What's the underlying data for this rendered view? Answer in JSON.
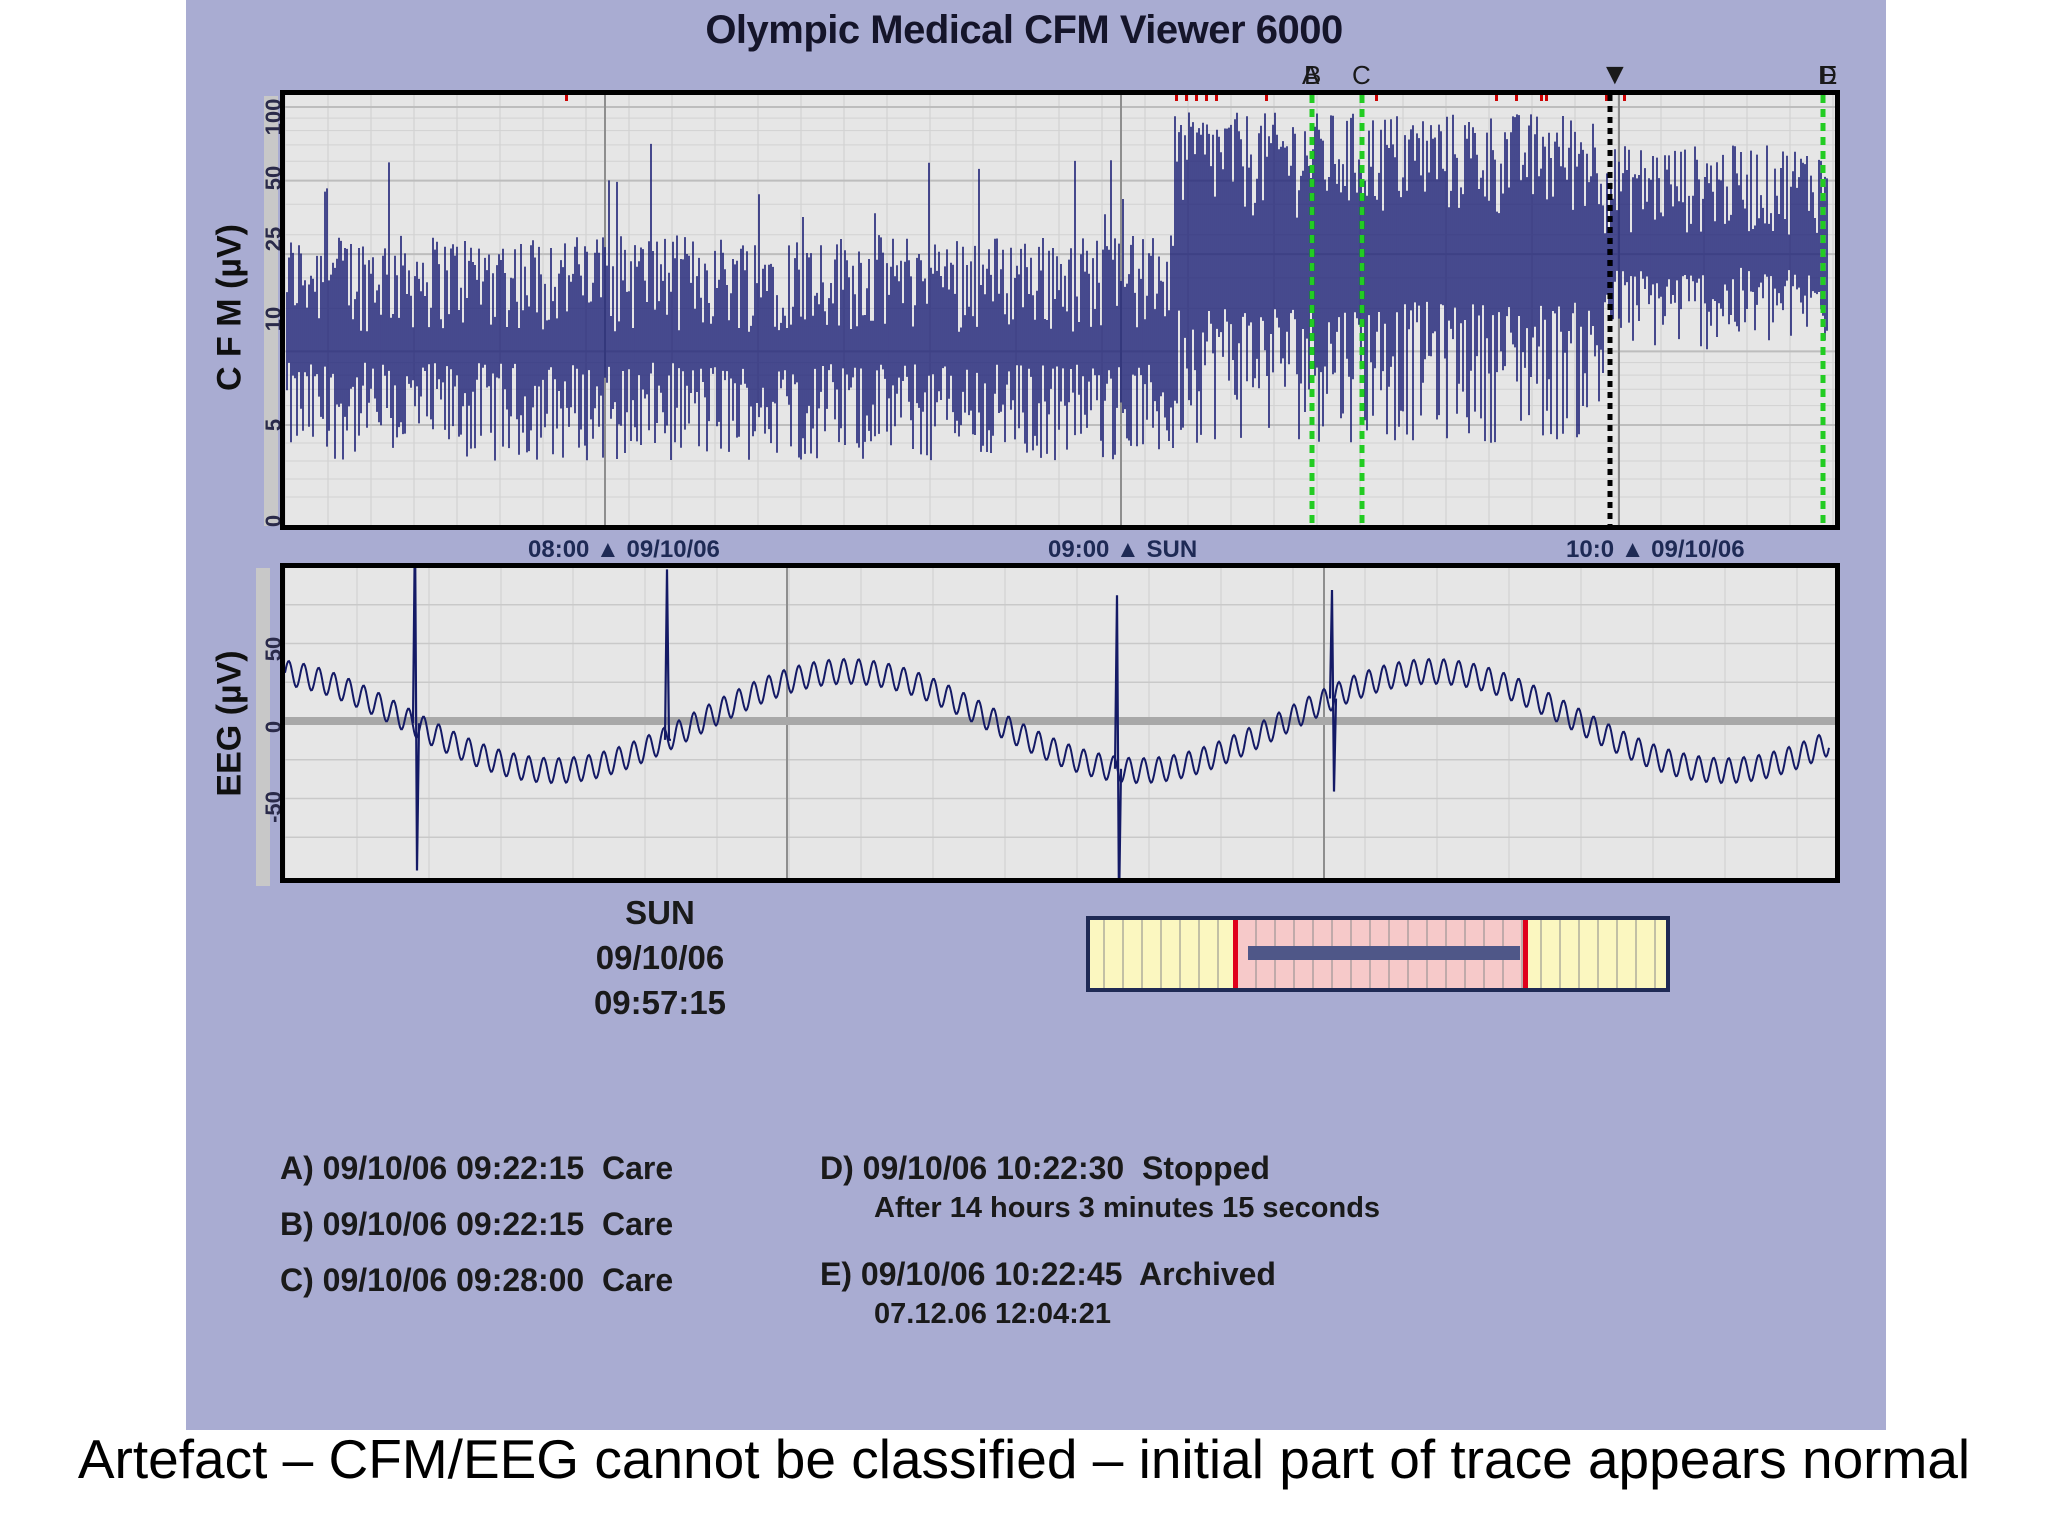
{
  "app": {
    "title": "Olympic Medical CFM Viewer 6000"
  },
  "cfm": {
    "ylabel": "C F M (µV)",
    "yticks": [
      "100",
      "50",
      "25",
      "10",
      "5",
      "0"
    ],
    "time_labels": [
      {
        "time": "08:00",
        "date": "09/10/06"
      },
      {
        "time": "09:00",
        "date": "SUN"
      },
      {
        "time": "10:0",
        "date": "09/10/06"
      }
    ],
    "event_markers": [
      "A",
      "B",
      "C",
      "D",
      "E"
    ],
    "cursor_marker": "▼",
    "colors": {
      "trace": "#1e2277",
      "event_line": "#22cc22",
      "cursor": "#000000",
      "flag": "#cc0000"
    }
  },
  "eeg": {
    "ylabel": "EEG (µV)",
    "yticks": [
      "50",
      "0",
      "-50"
    ],
    "colors": {
      "trace": "#141a66",
      "baseline": "#a8a8a8"
    }
  },
  "cursor_readout": {
    "day": "SUN",
    "date": "09/10/06",
    "time": "09:57:15"
  },
  "navigator": {
    "colors": {
      "background": "#fbf7c0",
      "window": "#f6c9c9",
      "bar": "#4f5788",
      "edge": "#e0001c"
    }
  },
  "events": {
    "left": [
      {
        "id": "A)",
        "datetime": "09/10/06 09:22:15",
        "note": "Care"
      },
      {
        "id": "B)",
        "datetime": "09/10/06 09:22:15",
        "note": "Care"
      },
      {
        "id": "C)",
        "datetime": "09/10/06 09:28:00",
        "note": "Care"
      }
    ],
    "right": [
      {
        "id": "D)",
        "datetime": "09/10/06 10:22:30",
        "note": "Stopped",
        "detail": "After 14 hours 3 minutes 15 seconds"
      },
      {
        "id": "E)",
        "datetime": "09/10/06 10:22:45",
        "note": "Archived",
        "detail": "07.12.06  12:04:21"
      }
    ]
  },
  "caption": "Artefact – CFM/EEG cannot be classified – initial part of trace appears normal"
}
